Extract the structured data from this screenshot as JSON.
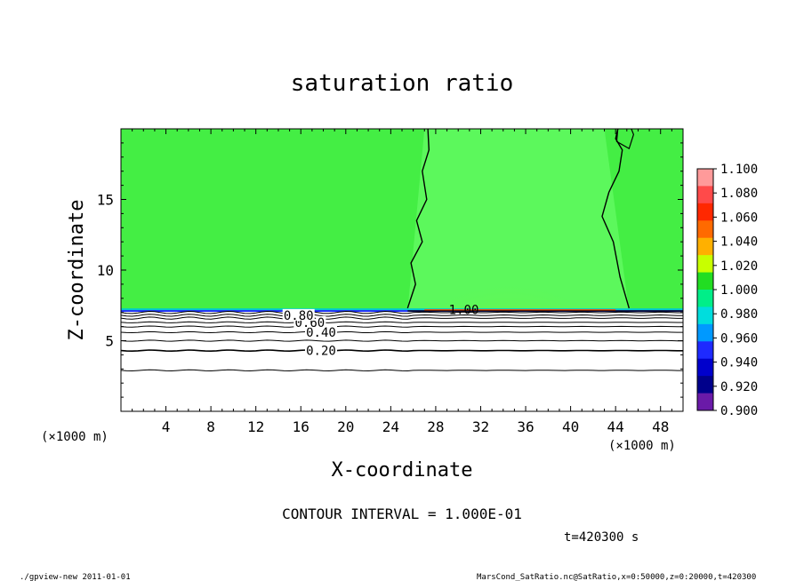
{
  "chart_data": {
    "type": "heatmap",
    "title": "saturation ratio",
    "xlabel": "X-coordinate",
    "ylabel": "Z-coordinate",
    "x_unit_left": "(×1000 m)",
    "x_unit_right": "(×1000 m)",
    "xlim": [
      0,
      50
    ],
    "ylim": [
      0,
      20
    ],
    "x_ticks": [
      4,
      8,
      12,
      16,
      20,
      24,
      28,
      32,
      36,
      40,
      44,
      48
    ],
    "y_ticks": [
      5,
      10,
      15
    ],
    "colorbar": {
      "levels": [
        "1.100",
        "1.080",
        "1.060",
        "1.040",
        "1.020",
        "1.000",
        "0.980",
        "0.960",
        "0.940",
        "0.920",
        "0.900"
      ],
      "colors": [
        "#ff9a9a",
        "#ff4a4a",
        "#ff2800",
        "#ff6a00",
        "#ffb000",
        "#c8ff00",
        "#22dd22",
        "#00ee88",
        "#00dddd",
        "#0099ff",
        "#1e2aff",
        "#0000cc",
        "#00008b",
        "#6a1aa8"
      ]
    },
    "regions": {
      "bg_color": "#44ee44",
      "mid_color": "#5cf85c",
      "core_color": "#ffee00",
      "cloud_top_z": 7.1
    },
    "contours": [
      {
        "label": "0.20",
        "z": 4.3,
        "label_x": 17.8
      },
      {
        "label": "0.40",
        "z": 5.6,
        "label_x": 17.8
      },
      {
        "label": "0.60",
        "z": 6.3,
        "label_x": 16.8
      },
      {
        "label": "0.80",
        "z": 6.8,
        "label_x": 15.8
      },
      {
        "label": "1.00",
        "z": 7.2,
        "label_x": 30.5
      }
    ],
    "contour_interval": "CONTOUR INTERVAL = 1.000E-01",
    "time": "t=420300 s"
  },
  "footer": {
    "left": "./gpview-new  2011-01-01",
    "right": "MarsCond_SatRatio.nc@SatRatio,x=0:50000,z=0:20000,t=420300"
  }
}
